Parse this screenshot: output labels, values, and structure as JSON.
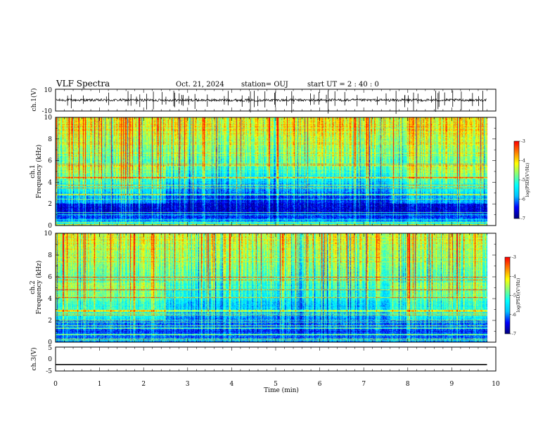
{
  "header": {
    "title": "VLF Spectra",
    "date": "Oct. 21, 2024",
    "station": "station= OUJ",
    "start": "start  UT =   2 : 40 : 0"
  },
  "chart_data": {
    "type": "heatmap",
    "xlabel": "Time (min)",
    "xlim": [
      0,
      10
    ],
    "xticks": [
      "0",
      "1",
      "2",
      "3",
      "4",
      "5",
      "6",
      "7",
      "8",
      "9",
      "10"
    ],
    "data_end_min": 9.8,
    "panels": [
      {
        "name": "ch1-waveform",
        "type": "line",
        "ylabel": "ch.1(V)",
        "ylim": [
          -10,
          10
        ],
        "yticks": [
          "10",
          "-10"
        ],
        "baseline": 0,
        "noise_amplitude": 1.2
      },
      {
        "name": "ch1-spectrogram",
        "type": "heatmap",
        "ylabel_channel": "ch.1",
        "ylabel": "Frequency (kHz)",
        "ylim": [
          0,
          10
        ],
        "yticks": [
          "0",
          "2",
          "4",
          "6",
          "8",
          "10"
        ],
        "colorbar": {
          "label": "log(PSD)(V²/Hz)",
          "range": [
            -7,
            -3
          ],
          "ticks": [
            "-3",
            "-4",
            "-5",
            "-6",
            "-7"
          ],
          "colormap": [
            "#000080",
            "#0000ff",
            "#00c0ff",
            "#00ffff",
            "#80ff80",
            "#ffff00",
            "#ff8000",
            "#ff0000",
            "#ffffff"
          ]
        },
        "profile_log_psd": [
          {
            "f_khz": 0.0,
            "v": -5.0
          },
          {
            "f_khz": 0.5,
            "v": -6.2
          },
          {
            "f_khz": 1.5,
            "v": -6.6
          },
          {
            "f_khz": 2.5,
            "v": -6.3
          },
          {
            "f_khz": 3.5,
            "v": -5.8
          },
          {
            "f_khz": 4.5,
            "v": -5.3
          },
          {
            "f_khz": 5.5,
            "v": -4.9
          },
          {
            "f_khz": 7.0,
            "v": -4.6
          },
          {
            "f_khz": 8.5,
            "v": -4.3
          },
          {
            "f_khz": 10.0,
            "v": -4.1
          }
        ],
        "band_boost_segments_min": [
          [
            0,
            2.5
          ],
          [
            7.6,
            9.8
          ]
        ]
      },
      {
        "name": "ch2-spectrogram",
        "type": "heatmap",
        "ylabel_channel": "ch.2",
        "ylabel": "Frequency (kHz)",
        "ylim": [
          0,
          10
        ],
        "yticks": [
          "0",
          "2",
          "4",
          "6",
          "8",
          "10"
        ],
        "colorbar": {
          "label": "log(PSD)(V²/Hz)",
          "range": [
            -7,
            -3
          ],
          "ticks": [
            "-3",
            "-4",
            "-5",
            "-6",
            "-7"
          ]
        },
        "profile_log_psd": [
          {
            "f_khz": 0.0,
            "v": -6.0
          },
          {
            "f_khz": 1.0,
            "v": -6.3
          },
          {
            "f_khz": 2.5,
            "v": -5.9
          },
          {
            "f_khz": 4.0,
            "v": -5.4
          },
          {
            "f_khz": 5.5,
            "v": -5.0
          },
          {
            "f_khz": 7.0,
            "v": -4.7
          },
          {
            "f_khz": 8.5,
            "v": -4.5
          },
          {
            "f_khz": 10.0,
            "v": -4.3
          }
        ],
        "band_boost_segments_min": [
          [
            0,
            2.5
          ],
          [
            7.6,
            9.8
          ]
        ]
      },
      {
        "name": "ch3-waveform",
        "type": "line",
        "ylabel": "ch.3(V)",
        "ylim": [
          -5,
          5
        ],
        "yticks": [
          "5",
          "0",
          "-5"
        ],
        "baseline": -2.3,
        "noise_amplitude": 0
      }
    ]
  }
}
